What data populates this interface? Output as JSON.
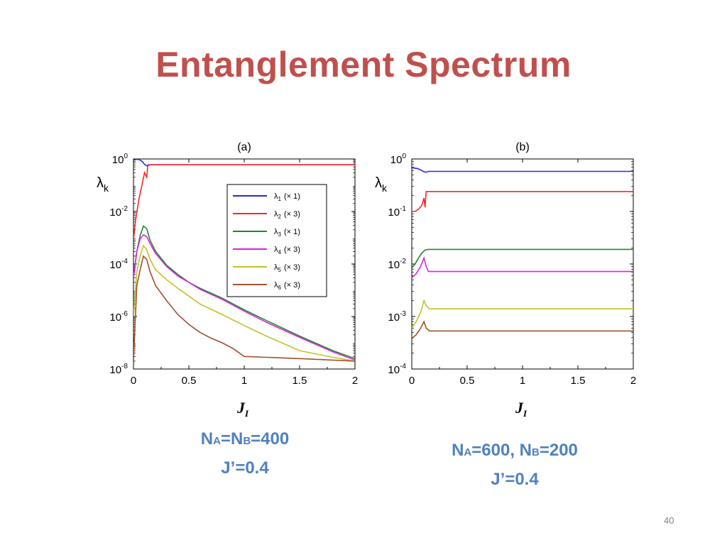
{
  "slide": {
    "title": "Entanglement Spectrum",
    "page_number": "40"
  },
  "captions": {
    "a": {
      "line1": {
        "n1": "N",
        "s1": "A",
        "eq1": "=N",
        "s2": "B",
        "v": "=400"
      },
      "line2": "J’=0.4"
    },
    "b": {
      "line1": {
        "n1": "N",
        "s1": "A",
        "eq1": "=600,  N",
        "s2": "B",
        "v": "=200"
      },
      "line2": "J’=0.4"
    }
  },
  "colors": {
    "title": "#c0504d",
    "caption": "#4f81bd",
    "series": [
      "#2929e0",
      "#ee2a2a",
      "#1f8a2a",
      "#e020e0",
      "#c2c22a",
      "#a0522d"
    ]
  },
  "chart_data": [
    {
      "panel_label": "(a)",
      "type": "line",
      "y_scale": "log",
      "xlabel": "J",
      "xlabel_sub": "I",
      "ylabel": "λ",
      "ylabel_sub": "k",
      "xlim": [
        0,
        2
      ],
      "ylim": [
        1e-08,
        1
      ],
      "x_ticks": [
        "0",
        "0.5",
        "1",
        "1.5",
        "2"
      ],
      "y_ticks": [
        {
          "base": "10",
          "exp": "0",
          "value": 1
        },
        {
          "base": "10",
          "exp": "-2",
          "value": 0.01
        },
        {
          "base": "10",
          "exp": "-4",
          "value": 0.0001
        },
        {
          "base": "10",
          "exp": "-6",
          "value": 1e-06
        },
        {
          "base": "10",
          "exp": "-8",
          "value": 1e-08
        }
      ],
      "legend": {
        "position": "top-right"
      },
      "series": [
        {
          "name": "λ1 (× 1)",
          "label": "λ",
          "sub": "1",
          "factor": "(× 1)",
          "x": [
            0,
            0.05,
            0.08,
            0.1,
            0.12,
            0.15,
            0.5,
            1,
            1.5,
            2
          ],
          "y": [
            0.98,
            0.95,
            0.8,
            0.62,
            0.55,
            0.6,
            0.6,
            0.6,
            0.6,
            0.6
          ]
        },
        {
          "name": "λ2 (× 3)",
          "label": "λ",
          "sub": "2",
          "factor": "(× 3)",
          "x": [
            0,
            0.02,
            0.05,
            0.08,
            0.1,
            0.12,
            0.13,
            0.15,
            0.5,
            1,
            1.5,
            2
          ],
          "y": [
            0.0008,
            0.005,
            0.03,
            0.12,
            0.3,
            0.2,
            0.6,
            0.6,
            0.6,
            0.6,
            0.6,
            0.6
          ]
        },
        {
          "name": "λ3 (× 1)",
          "label": "λ",
          "sub": "3",
          "factor": "(× 1)",
          "x": [
            0,
            0.03,
            0.06,
            0.09,
            0.12,
            0.15,
            0.2,
            0.3,
            0.4,
            0.5,
            0.6,
            0.8,
            1,
            1.2,
            1.5,
            1.8,
            2
          ],
          "y": [
            3e-05,
            0.0003,
            0.0012,
            0.0028,
            0.0022,
            0.0008,
            0.0003,
            9e-05,
            4e-05,
            2e-05,
            1.2e-05,
            5e-06,
            1.8e-06,
            7e-07,
            1.8e-07,
            5e-08,
            2.5e-08
          ]
        },
        {
          "name": "λ4 (× 3)",
          "label": "λ",
          "sub": "4",
          "factor": "(× 3)",
          "x": [
            0,
            0.03,
            0.06,
            0.09,
            0.12,
            0.15,
            0.2,
            0.3,
            0.4,
            0.5,
            0.6,
            0.8,
            1,
            1.2,
            1.5,
            1.8,
            2
          ],
          "y": [
            3e-05,
            0.0003,
            0.0009,
            0.0013,
            0.0011,
            0.0006,
            0.00025,
            8e-05,
            3.5e-05,
            2e-05,
            1.1e-05,
            4.5e-06,
            1.6e-06,
            6e-07,
            1.6e-07,
            4.5e-08,
            2.2e-08
          ]
        },
        {
          "name": "λ5 (× 3)",
          "label": "λ",
          "sub": "5",
          "factor": "(× 3)",
          "x": [
            0,
            0.03,
            0.06,
            0.09,
            0.12,
            0.15,
            0.2,
            0.3,
            0.4,
            0.5,
            0.6,
            0.8,
            1,
            1.2,
            1.5,
            1.8,
            2
          ],
          "y": [
            1e-06,
            5e-05,
            0.0002,
            0.0005,
            0.00035,
            0.00015,
            6e-05,
            2.5e-05,
            1.2e-05,
            6e-06,
            3e-06,
            1.2e-06,
            4.5e-07,
            1.8e-07,
            5e-08,
            2.8e-08,
            2e-08
          ]
        },
        {
          "name": "λ6 (× 3)",
          "label": "λ",
          "sub": "6",
          "factor": "(× 3)",
          "x": [
            0,
            0.03,
            0.06,
            0.09,
            0.12,
            0.15,
            0.2,
            0.3,
            0.4,
            0.5,
            0.6,
            0.7,
            0.8,
            0.9,
            1,
            1.5,
            2
          ],
          "y": [
            2e-08,
            1.5e-05,
            6e-05,
            0.0002,
            0.00015,
            5e-05,
            1.5e-05,
            4e-06,
            1.2e-06,
            5e-07,
            2.5e-07,
            1.5e-07,
            1e-07,
            6e-08,
            3e-08,
            2.5e-08,
            2e-08
          ]
        }
      ]
    },
    {
      "panel_label": "(b)",
      "type": "line",
      "y_scale": "log",
      "xlabel": "J",
      "xlabel_sub": "I",
      "ylabel": "λ",
      "ylabel_sub": "k",
      "xlim": [
        0,
        2
      ],
      "ylim": [
        0.0001,
        1
      ],
      "x_ticks": [
        "0",
        "0.5",
        "1",
        "1.5",
        "2"
      ],
      "y_ticks": [
        {
          "base": "10",
          "exp": "0",
          "value": 1
        },
        {
          "base": "10",
          "exp": "-1",
          "value": 0.1
        },
        {
          "base": "10",
          "exp": "-2",
          "value": 0.01
        },
        {
          "base": "10",
          "exp": "-3",
          "value": 0.001
        },
        {
          "base": "10",
          "exp": "-4",
          "value": 0.0001
        }
      ],
      "series": [
        {
          "name": "λ1",
          "x": [
            0,
            0.05,
            0.08,
            0.11,
            0.13,
            0.15,
            0.5,
            1,
            1.5,
            2
          ],
          "y": [
            0.68,
            0.66,
            0.62,
            0.57,
            0.56,
            0.58,
            0.58,
            0.58,
            0.58,
            0.58
          ]
        },
        {
          "name": "λ2",
          "x": [
            0,
            0.03,
            0.06,
            0.09,
            0.11,
            0.12,
            0.13,
            0.15,
            0.5,
            1,
            1.5,
            2
          ],
          "y": [
            0.1,
            0.1,
            0.11,
            0.13,
            0.18,
            0.12,
            0.24,
            0.24,
            0.24,
            0.24,
            0.24,
            0.24
          ]
        },
        {
          "name": "λ3",
          "x": [
            0,
            0.03,
            0.06,
            0.09,
            0.12,
            0.15,
            0.5,
            1,
            1.5,
            2
          ],
          "y": [
            0.0085,
            0.01,
            0.013,
            0.016,
            0.0185,
            0.019,
            0.019,
            0.019,
            0.019,
            0.019
          ]
        },
        {
          "name": "λ4",
          "x": [
            0,
            0.04,
            0.08,
            0.11,
            0.13,
            0.15,
            0.5,
            1,
            1.5,
            2
          ],
          "y": [
            0.0055,
            0.0065,
            0.009,
            0.013,
            0.009,
            0.0072,
            0.0072,
            0.0072,
            0.0072,
            0.0072
          ]
        },
        {
          "name": "λ5",
          "x": [
            0,
            0.04,
            0.08,
            0.11,
            0.13,
            0.16,
            0.5,
            1,
            1.5,
            2
          ],
          "y": [
            0.0006,
            0.0008,
            0.0012,
            0.002,
            0.0016,
            0.0014,
            0.0014,
            0.0014,
            0.0014,
            0.0014
          ]
        },
        {
          "name": "λ6",
          "x": [
            0,
            0.04,
            0.08,
            0.11,
            0.13,
            0.16,
            0.5,
            1,
            1.5,
            2
          ],
          "y": [
            0.00038,
            0.00045,
            0.0006,
            0.0008,
            0.0006,
            0.00053,
            0.00053,
            0.00053,
            0.00053,
            0.00053
          ]
        }
      ]
    }
  ]
}
